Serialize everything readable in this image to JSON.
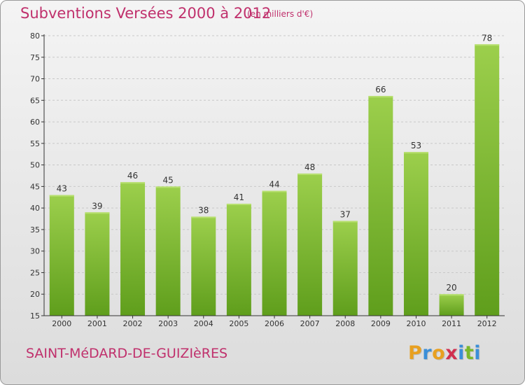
{
  "header": {
    "title": "Subventions Versées 2000 à 2012",
    "subtitle": "(en milliers d'€)"
  },
  "footer": {
    "commune": "SAINT-MéDARD-DE-GUIZIèRES",
    "logo_letters": [
      "P",
      "r",
      "o",
      "x",
      "i",
      "t",
      "i"
    ],
    "logo_colors": [
      "#e8a020",
      "#3a8ed8",
      "#e8a020",
      "#d03050",
      "#3a8ed8",
      "#7ab82a",
      "#3a8ed8"
    ]
  },
  "colors": {
    "bar_light": "#9ccf4c",
    "bar_dark": "#5f9e1c",
    "grid": "#c8c8c8",
    "axis": "#333333"
  },
  "chart_data": {
    "type": "bar",
    "title": "Subventions Versées 2000 à 2012",
    "subtitle": "(en milliers d'€)",
    "categories": [
      "2000",
      "2001",
      "2002",
      "2003",
      "2004",
      "2005",
      "2006",
      "2007",
      "2008",
      "2009",
      "2010",
      "2011",
      "2012"
    ],
    "values": [
      43,
      39,
      46,
      45,
      38,
      41,
      44,
      48,
      37,
      66,
      53,
      20,
      78
    ],
    "ylim": [
      15,
      80
    ],
    "yticks": [
      15,
      20,
      25,
      30,
      35,
      40,
      45,
      50,
      55,
      60,
      65,
      70,
      75,
      80
    ],
    "grid": true,
    "grid_style": "dashed-horizontal",
    "data_labels": true
  }
}
